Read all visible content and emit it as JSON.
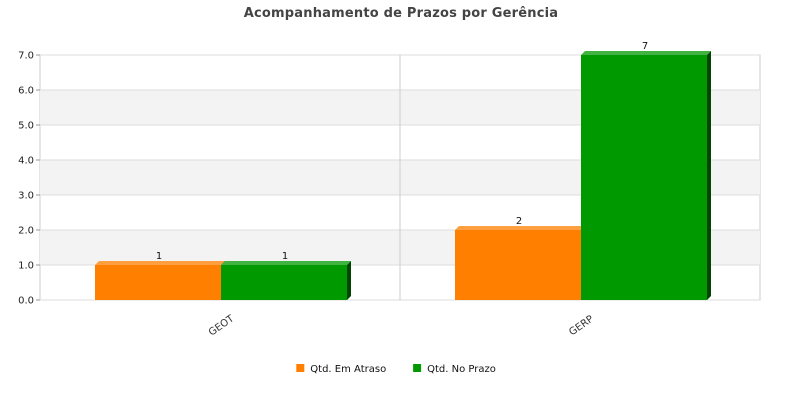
{
  "chart_data": {
    "type": "bar",
    "title": "Acompanhamento de Prazos por Gerência",
    "xlabel": "",
    "ylabel": "",
    "categories": [
      "GEOT",
      "GERP"
    ],
    "series": [
      {
        "name": "Qtd. Em Atraso",
        "values": [
          1,
          2
        ],
        "color": "#ff7f00"
      },
      {
        "name": "Qtd. No Prazo",
        "values": [
          1,
          7
        ],
        "color": "#009900"
      }
    ],
    "data_labels": [
      [
        "1",
        "2"
      ],
      [
        "1",
        "7"
      ]
    ],
    "ylim": [
      0,
      7
    ],
    "yticks": [
      "0.0",
      "1.0",
      "2.0",
      "3.0",
      "4.0",
      "5.0",
      "6.0",
      "7.0"
    ],
    "grid": true,
    "legend": "bottom-center",
    "colors": {
      "band": "#f3f3f3",
      "gridline": "#dddddd",
      "axis": "#cccccc"
    }
  }
}
